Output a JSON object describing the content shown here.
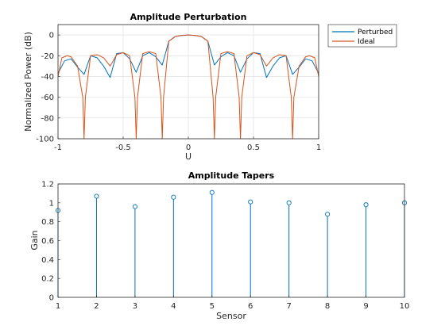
{
  "chart_data": [
    {
      "type": "line",
      "title": "Amplitude Perturbation",
      "xlabel": "U",
      "ylabel": "Normalized Power (dB)",
      "xlim": [
        -1,
        1
      ],
      "ylim": [
        -100,
        10
      ],
      "xticks": [
        -1,
        -0.5,
        0,
        0.5,
        1
      ],
      "xtick_labels": [
        "-1",
        "-0.5",
        "0",
        "0.5",
        "1"
      ],
      "yticks": [
        -100,
        -80,
        -60,
        -40,
        -20,
        0
      ],
      "ytick_labels": [
        "-100",
        "-80",
        "-60",
        "-40",
        "-20",
        "0"
      ],
      "grid": true,
      "legend_position": "outside-top-right",
      "series": [
        {
          "name": "Perturbed",
          "color": "#0072BD",
          "x": [
            -1,
            -0.95,
            -0.9,
            -0.85,
            -0.8,
            -0.75,
            -0.7,
            -0.65,
            -0.6,
            -0.55,
            -0.5,
            -0.45,
            -0.4,
            -0.35,
            -0.3,
            -0.25,
            -0.2,
            -0.15,
            -0.1,
            -0.05,
            0,
            0.05,
            0.1,
            0.15,
            0.2,
            0.25,
            0.3,
            0.35,
            0.4,
            0.45,
            0.5,
            0.55,
            0.6,
            0.65,
            0.7,
            0.75,
            0.8,
            0.85,
            0.9,
            0.95,
            1
          ],
          "y": [
            -37,
            -25,
            -23,
            -31,
            -38,
            -20,
            -22,
            -30,
            -41,
            -18,
            -17,
            -23,
            -36,
            -20,
            -17,
            -21,
            -29,
            -6,
            -1.5,
            -0.5,
            0,
            -0.5,
            -1.5,
            -6,
            -29,
            -21,
            -17,
            -20,
            -36,
            -23,
            -17,
            -18,
            -41,
            -30,
            -22,
            -20,
            -38,
            -31,
            -23,
            -25,
            -37
          ]
        },
        {
          "name": "Ideal",
          "color": "#D95319",
          "x": [
            -1,
            -0.97,
            -0.93,
            -0.9,
            -0.85,
            -0.81,
            -0.8,
            -0.79,
            -0.75,
            -0.7,
            -0.65,
            -0.6,
            -0.55,
            -0.5,
            -0.45,
            -0.41,
            -0.4,
            -0.39,
            -0.35,
            -0.3,
            -0.25,
            -0.21,
            -0.2,
            -0.19,
            -0.15,
            -0.1,
            -0.05,
            0,
            0.05,
            0.1,
            0.15,
            0.19,
            0.2,
            0.21,
            0.25,
            0.3,
            0.35,
            0.39,
            0.4,
            0.41,
            0.45,
            0.5,
            0.55,
            0.6,
            0.65,
            0.7,
            0.75,
            0.79,
            0.8,
            0.81,
            0.85,
            0.9,
            0.93,
            0.97,
            1
          ],
          "y": [
            -40,
            -22,
            -20,
            -21,
            -30,
            -60,
            -100,
            -60,
            -20,
            -19,
            -22,
            -30,
            -19,
            -17,
            -20,
            -60,
            -100,
            -60,
            -18,
            -16,
            -18,
            -60,
            -100,
            -60,
            -6,
            -1.5,
            -0.4,
            0,
            -0.4,
            -1.5,
            -6,
            -60,
            -100,
            -60,
            -18,
            -16,
            -18,
            -60,
            -100,
            -60,
            -20,
            -17,
            -19,
            -30,
            -22,
            -19,
            -20,
            -60,
            -100,
            -60,
            -30,
            -21,
            -20,
            -22,
            -40
          ]
        }
      ]
    },
    {
      "type": "stem",
      "title": "Amplitude Tapers",
      "xlabel": "Sensor",
      "ylabel": "Gain",
      "xlim": [
        1,
        10
      ],
      "ylim": [
        0,
        1.2
      ],
      "xticks": [
        1,
        2,
        3,
        4,
        5,
        6,
        7,
        8,
        9,
        10
      ],
      "xtick_labels": [
        "1",
        "2",
        "3",
        "4",
        "5",
        "6",
        "7",
        "8",
        "9",
        "10"
      ],
      "yticks": [
        0,
        0.2,
        0.4,
        0.6,
        0.8,
        1,
        1.2
      ],
      "ytick_labels": [
        "0",
        "0.2",
        "0.4",
        "0.6",
        "0.8",
        "1",
        "1.2"
      ],
      "grid": false,
      "color": "#0072BD",
      "x": [
        1,
        2,
        3,
        4,
        5,
        6,
        7,
        8,
        9,
        10
      ],
      "values": [
        0.92,
        1.07,
        0.96,
        1.06,
        1.11,
        1.01,
        1.0,
        0.88,
        0.98,
        1.0
      ]
    }
  ]
}
